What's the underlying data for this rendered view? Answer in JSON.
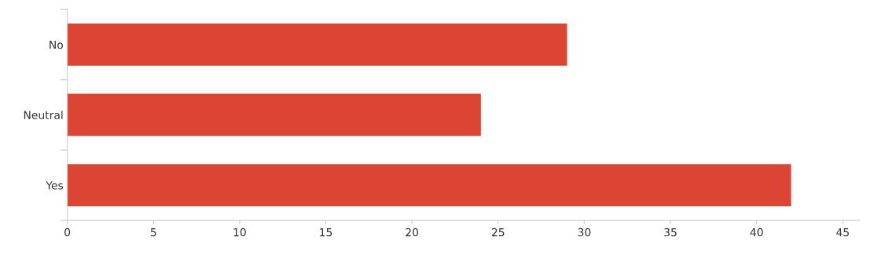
{
  "chart_data": {
    "type": "bar",
    "orientation": "horizontal",
    "categories": [
      "No",
      "Neutral",
      "Yes"
    ],
    "values": [
      29,
      24,
      42
    ],
    "color": "#dc4433",
    "xlim": [
      0,
      46
    ],
    "xticks": [
      0,
      5,
      10,
      15,
      20,
      25,
      30,
      35,
      40,
      45
    ],
    "grid": false,
    "legend": false
  }
}
